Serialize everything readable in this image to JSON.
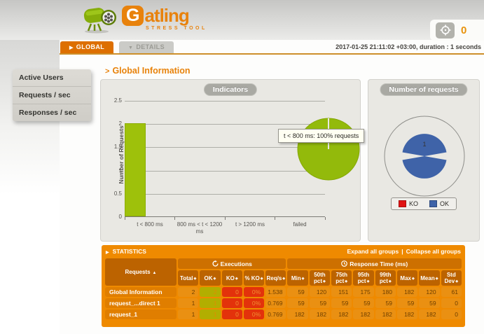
{
  "brand": {
    "g": "G",
    "rest": "atling",
    "subtitle": "STRESS TOOL"
  },
  "counter": "0",
  "run_info": "2017-01-25 21:11:02 +03:00, duration : 1 seconds",
  "tabs": {
    "global": "GLOBAL",
    "details": "DETAILS"
  },
  "sidebar": {
    "items": [
      {
        "label": "Active Users"
      },
      {
        "label": "Requests / sec"
      },
      {
        "label": "Responses / sec"
      }
    ]
  },
  "page_title": {
    "arrow": ">",
    "text": "Global Information"
  },
  "indicators": {
    "title": "Indicators",
    "ylabel": "Number of Requests",
    "yticks": [
      "2.5",
      "2",
      "1.5",
      "1",
      "0.5",
      "0"
    ],
    "categories": [
      "t < 800 ms",
      "800 ms < t < 1200 ms",
      "t > 1200 ms",
      "failed"
    ],
    "values": [
      2,
      0,
      0,
      0
    ],
    "ymax": 2.5,
    "bar_color": "#9ec10b",
    "pie_color": "#93ba0b",
    "tooltip": "t < 800 ms: 100% requests"
  },
  "requests_chart": {
    "title": "Number of requests",
    "value_label": "1",
    "legend": [
      {
        "label": "KO",
        "color": "#e01313"
      },
      {
        "label": "OK",
        "color": "#3f63a8"
      }
    ]
  },
  "stats": {
    "title": "STATISTICS",
    "expand_link": "Expand all groups",
    "collapse_link": "Collapse all groups",
    "requests_col": "Requests",
    "exec_group": "Executions",
    "resp_group": "Response Time (ms)",
    "headers": [
      "Total",
      "OK",
      "KO",
      "% KO",
      "Req/s",
      "Min",
      "50th pct",
      "75th pct",
      "95th pct",
      "99th pct",
      "Max",
      "Mean",
      "Std Dev"
    ],
    "rows": [
      {
        "name": "Global Information",
        "cells": [
          "2",
          "2",
          "0",
          "0%",
          "1.538",
          "59",
          "120",
          "151",
          "175",
          "180",
          "182",
          "120",
          "61"
        ]
      },
      {
        "name": "request_...direct 1",
        "cells": [
          "1",
          "1",
          "0",
          "0%",
          "0.769",
          "59",
          "59",
          "59",
          "59",
          "59",
          "59",
          "59",
          "0"
        ]
      },
      {
        "name": "request_1",
        "cells": [
          "1",
          "1",
          "0",
          "0%",
          "0.769",
          "182",
          "182",
          "182",
          "182",
          "182",
          "182",
          "182",
          "0"
        ]
      }
    ]
  }
}
